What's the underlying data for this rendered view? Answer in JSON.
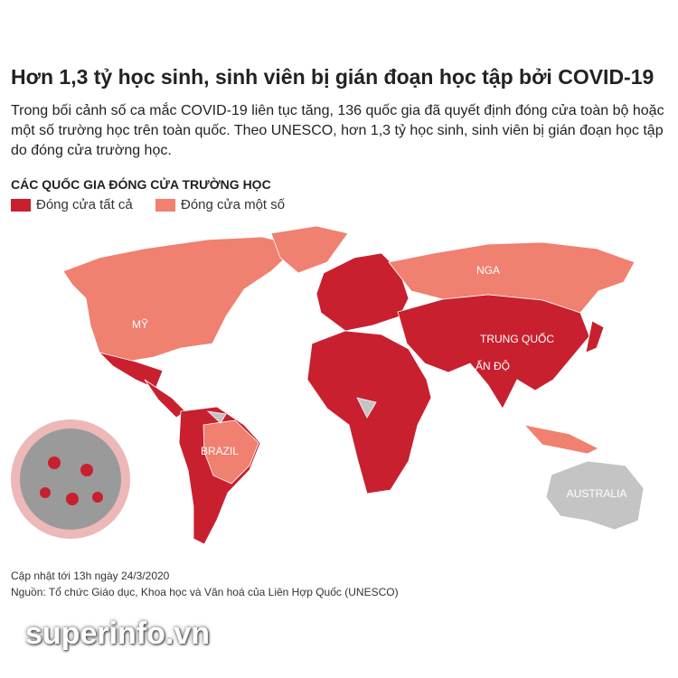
{
  "header": {
    "title": "Hơn 1,3 tỷ học sinh, sinh viên bị gián đoạn học tập bởi COVID-19",
    "description": "Trong bối cảnh số ca mắc COVID-19 liên tục tăng, 136 quốc gia đã quyết định đóng cửa toàn bộ hoặc một số trường học trên toàn quốc. Theo UNESCO, hơn 1,3 tỷ học sinh, sinh viên bị gián đoạn học tập do đóng cửa trường học."
  },
  "legend": {
    "title": "CÁC QUỐC GIA ĐÓNG CỬA TRƯỜNG HỌC",
    "items": [
      {
        "label": "Đóng cửa tất cả",
        "color": "#c8202f"
      },
      {
        "label": "Đóng cửa một số",
        "color": "#f08070"
      }
    ]
  },
  "map": {
    "labels": [
      "NGA",
      "MỸ",
      "TRUNG QUỐC",
      "ẤN ĐỘ",
      "BRAZIL",
      "AUSTRALIA"
    ]
  },
  "footer": {
    "updated": "Cập nhật tới 13h ngày 24/3/2020",
    "source": "Nguồn: Tổ chức Giáo dục, Khoa học và Văn hoá của Liên Hợp Quốc (UNESCO)",
    "watermark": "superinfo.vn"
  }
}
